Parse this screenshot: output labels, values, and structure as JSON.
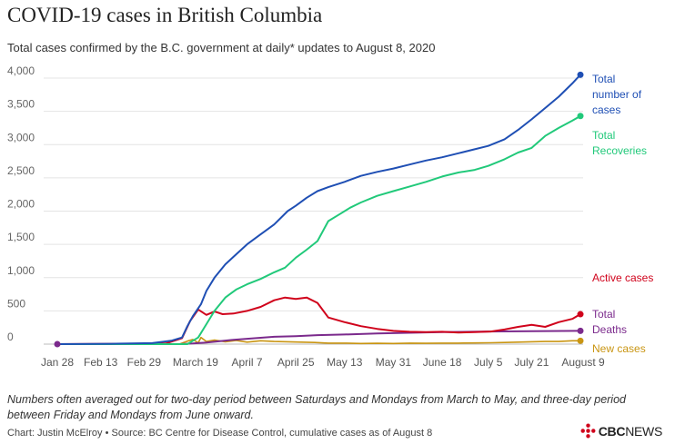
{
  "header": {
    "title": "COVID-19 cases in British Columbia",
    "subtitle": "Total cases confirmed by the B.C. government at daily* updates to August 8, 2020"
  },
  "footer": {
    "note": "Numbers often averaged out for two-day period between Saturdays and Mondays from March to May, and three-day period between Friday and Mondays from June onward.",
    "credit": "Chart: Justin McElroy • Source: BC Centre for Disease Control, cumulative cases as of August 8",
    "brand_cbc": "CBC",
    "brand_news": "NEWS"
  },
  "chart_data": {
    "type": "line",
    "ylim": [
      0,
      4000
    ],
    "y_ticks": [
      "0",
      "500",
      "1,000",
      "1,500",
      "2,000",
      "2,500",
      "3,000",
      "3,500",
      "4,000"
    ],
    "y_tick_values": [
      0,
      500,
      1000,
      1500,
      2000,
      2500,
      3000,
      3500,
      4000
    ],
    "x_ticks": [
      "Jan 28",
      "Feb 13",
      "Feb 29",
      "March 19",
      "April 7",
      "April 25",
      "May 13",
      "May 31",
      "June 18",
      "July 5",
      "July 21",
      "August 9"
    ],
    "x_tick_days": [
      0,
      16,
      32,
      51,
      70,
      88,
      106,
      124,
      142,
      159,
      175,
      194
    ],
    "grid": true,
    "legend": "direct labels at right",
    "series": [
      {
        "name": "Total number of cases",
        "label_lines": [
          "Total",
          "number of",
          "cases"
        ],
        "color": "#1f4fb4",
        "x": [
          0,
          20,
          35,
          42,
          46,
          48,
          50,
          53,
          55,
          58,
          62,
          66,
          70,
          75,
          80,
          85,
          88,
          92,
          96,
          100,
          106,
          112,
          118,
          124,
          130,
          136,
          142,
          148,
          154,
          159,
          165,
          170,
          175,
          180,
          185,
          190,
          193
        ],
        "y": [
          0,
          5,
          15,
          50,
          100,
          270,
          420,
          600,
          800,
          1000,
          1200,
          1350,
          1500,
          1650,
          1800,
          2000,
          2080,
          2200,
          2300,
          2360,
          2440,
          2530,
          2590,
          2640,
          2700,
          2760,
          2810,
          2870,
          2930,
          2980,
          3080,
          3220,
          3380,
          3550,
          3720,
          3920,
          4050
        ]
      },
      {
        "name": "Total Recoveries",
        "label_lines": [
          "Total",
          "Recoveries"
        ],
        "color": "#21c97a",
        "x": [
          0,
          48,
          52,
          55,
          58,
          62,
          66,
          70,
          75,
          80,
          84,
          88,
          92,
          96,
          100,
          104,
          108,
          112,
          118,
          124,
          130,
          136,
          142,
          148,
          154,
          159,
          165,
          170,
          175,
          180,
          185,
          190,
          193
        ],
        "y": [
          0,
          0,
          100,
          300,
          500,
          700,
          820,
          900,
          980,
          1080,
          1150,
          1300,
          1420,
          1550,
          1850,
          1950,
          2050,
          2130,
          2230,
          2300,
          2370,
          2440,
          2520,
          2580,
          2620,
          2680,
          2780,
          2880,
          2950,
          3130,
          3250,
          3360,
          3430
        ]
      },
      {
        "name": "Active cases",
        "label_lines": [
          "Active cases"
        ],
        "color": "#d0021b",
        "x": [
          0,
          40,
          46,
          49,
          52,
          55,
          58,
          61,
          65,
          70,
          75,
          80,
          84,
          88,
          92,
          96,
          100,
          106,
          112,
          118,
          124,
          130,
          136,
          142,
          148,
          154,
          160,
          165,
          170,
          175,
          180,
          185,
          190,
          193
        ],
        "y": [
          0,
          10,
          90,
          350,
          520,
          440,
          490,
          450,
          460,
          500,
          560,
          660,
          700,
          680,
          700,
          620,
          400,
          330,
          270,
          230,
          200,
          185,
          180,
          185,
          175,
          180,
          190,
          220,
          260,
          290,
          260,
          330,
          380,
          450
        ]
      },
      {
        "name": "Total Deaths",
        "label_lines": [
          "Total",
          "Deaths"
        ],
        "color": "#7b2a8c",
        "x": [
          0,
          45,
          50,
          55,
          60,
          65,
          70,
          75,
          80,
          88,
          96,
          106,
          118,
          130,
          142,
          159,
          175,
          193
        ],
        "y": [
          0,
          0,
          10,
          25,
          45,
          65,
          80,
          95,
          110,
          120,
          135,
          145,
          160,
          170,
          180,
          190,
          195,
          200
        ]
      },
      {
        "name": "New cases",
        "label_lines": [
          "New cases"
        ],
        "color": "#c99512",
        "x": [
          0,
          45,
          48,
          50,
          52,
          53,
          55,
          58,
          62,
          66,
          70,
          75,
          80,
          85,
          90,
          95,
          100,
          106,
          112,
          118,
          124,
          130,
          136,
          142,
          148,
          154,
          160,
          165,
          170,
          175,
          180,
          185,
          190,
          193
        ],
        "y": [
          0,
          0,
          45,
          70,
          20,
          100,
          40,
          60,
          35,
          55,
          30,
          50,
          40,
          35,
          30,
          25,
          15,
          15,
          10,
          12,
          10,
          15,
          12,
          15,
          15,
          18,
          20,
          25,
          30,
          35,
          40,
          40,
          50,
          50
        ]
      }
    ]
  }
}
